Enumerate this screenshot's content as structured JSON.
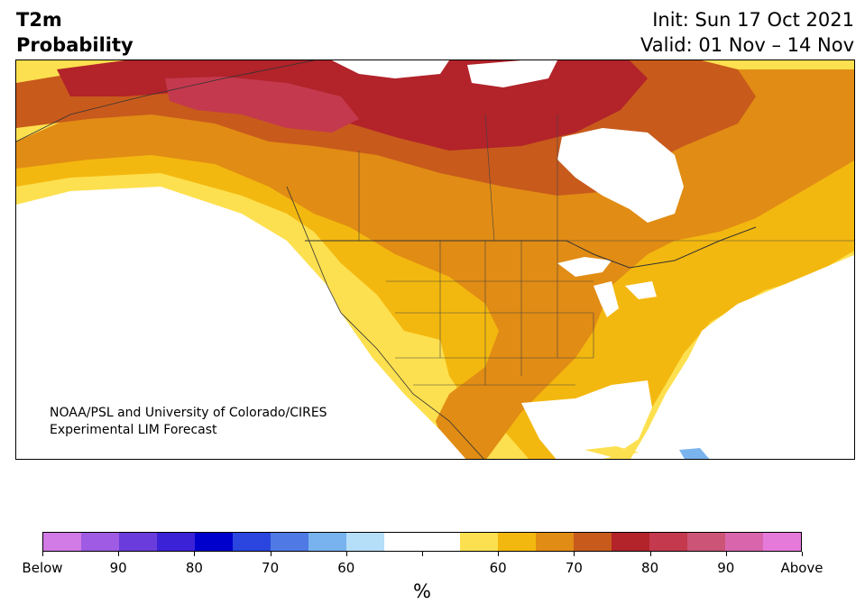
{
  "header": {
    "title_line1": "T2m",
    "title_line2": "Probability",
    "init": "Init: Sun 17 Oct 2021",
    "valid": "Valid: 01 Nov – 14 Nov"
  },
  "map": {
    "region": "North America",
    "credit_line1": "NOAA/PSL and University of Colorado/CIRES",
    "credit_line2": "Experimental LIM Forecast",
    "category_colors": {
      "above_50_60": "#fde04f",
      "above_60_65": "#f3b80f",
      "above_65_70": "#e18c14",
      "above_70_75": "#c85a1c",
      "above_75_80": "#b2232a",
      "above_80_85": "#c4394e",
      "below_60_65": "#7ab4ee",
      "neutral": "#ffffff"
    }
  },
  "colorbar": {
    "colors": [
      "#d27ae6",
      "#9f5be3",
      "#6a3cdb",
      "#3c22d6",
      "#0000cc",
      "#2a46de",
      "#4f79e5",
      "#78b2ef",
      "#b5def9",
      "#ffffff",
      "#ffffff",
      "#fde04f",
      "#f3b80f",
      "#e18c14",
      "#c85a1c",
      "#b2232a",
      "#c4394e",
      "#cc5476",
      "#d965ad",
      "#e67ada"
    ],
    "tick_labels": [
      "Below",
      "90",
      "80",
      "70",
      "60",
      "",
      "60",
      "70",
      "80",
      "90",
      "Above"
    ],
    "unit": "%"
  }
}
